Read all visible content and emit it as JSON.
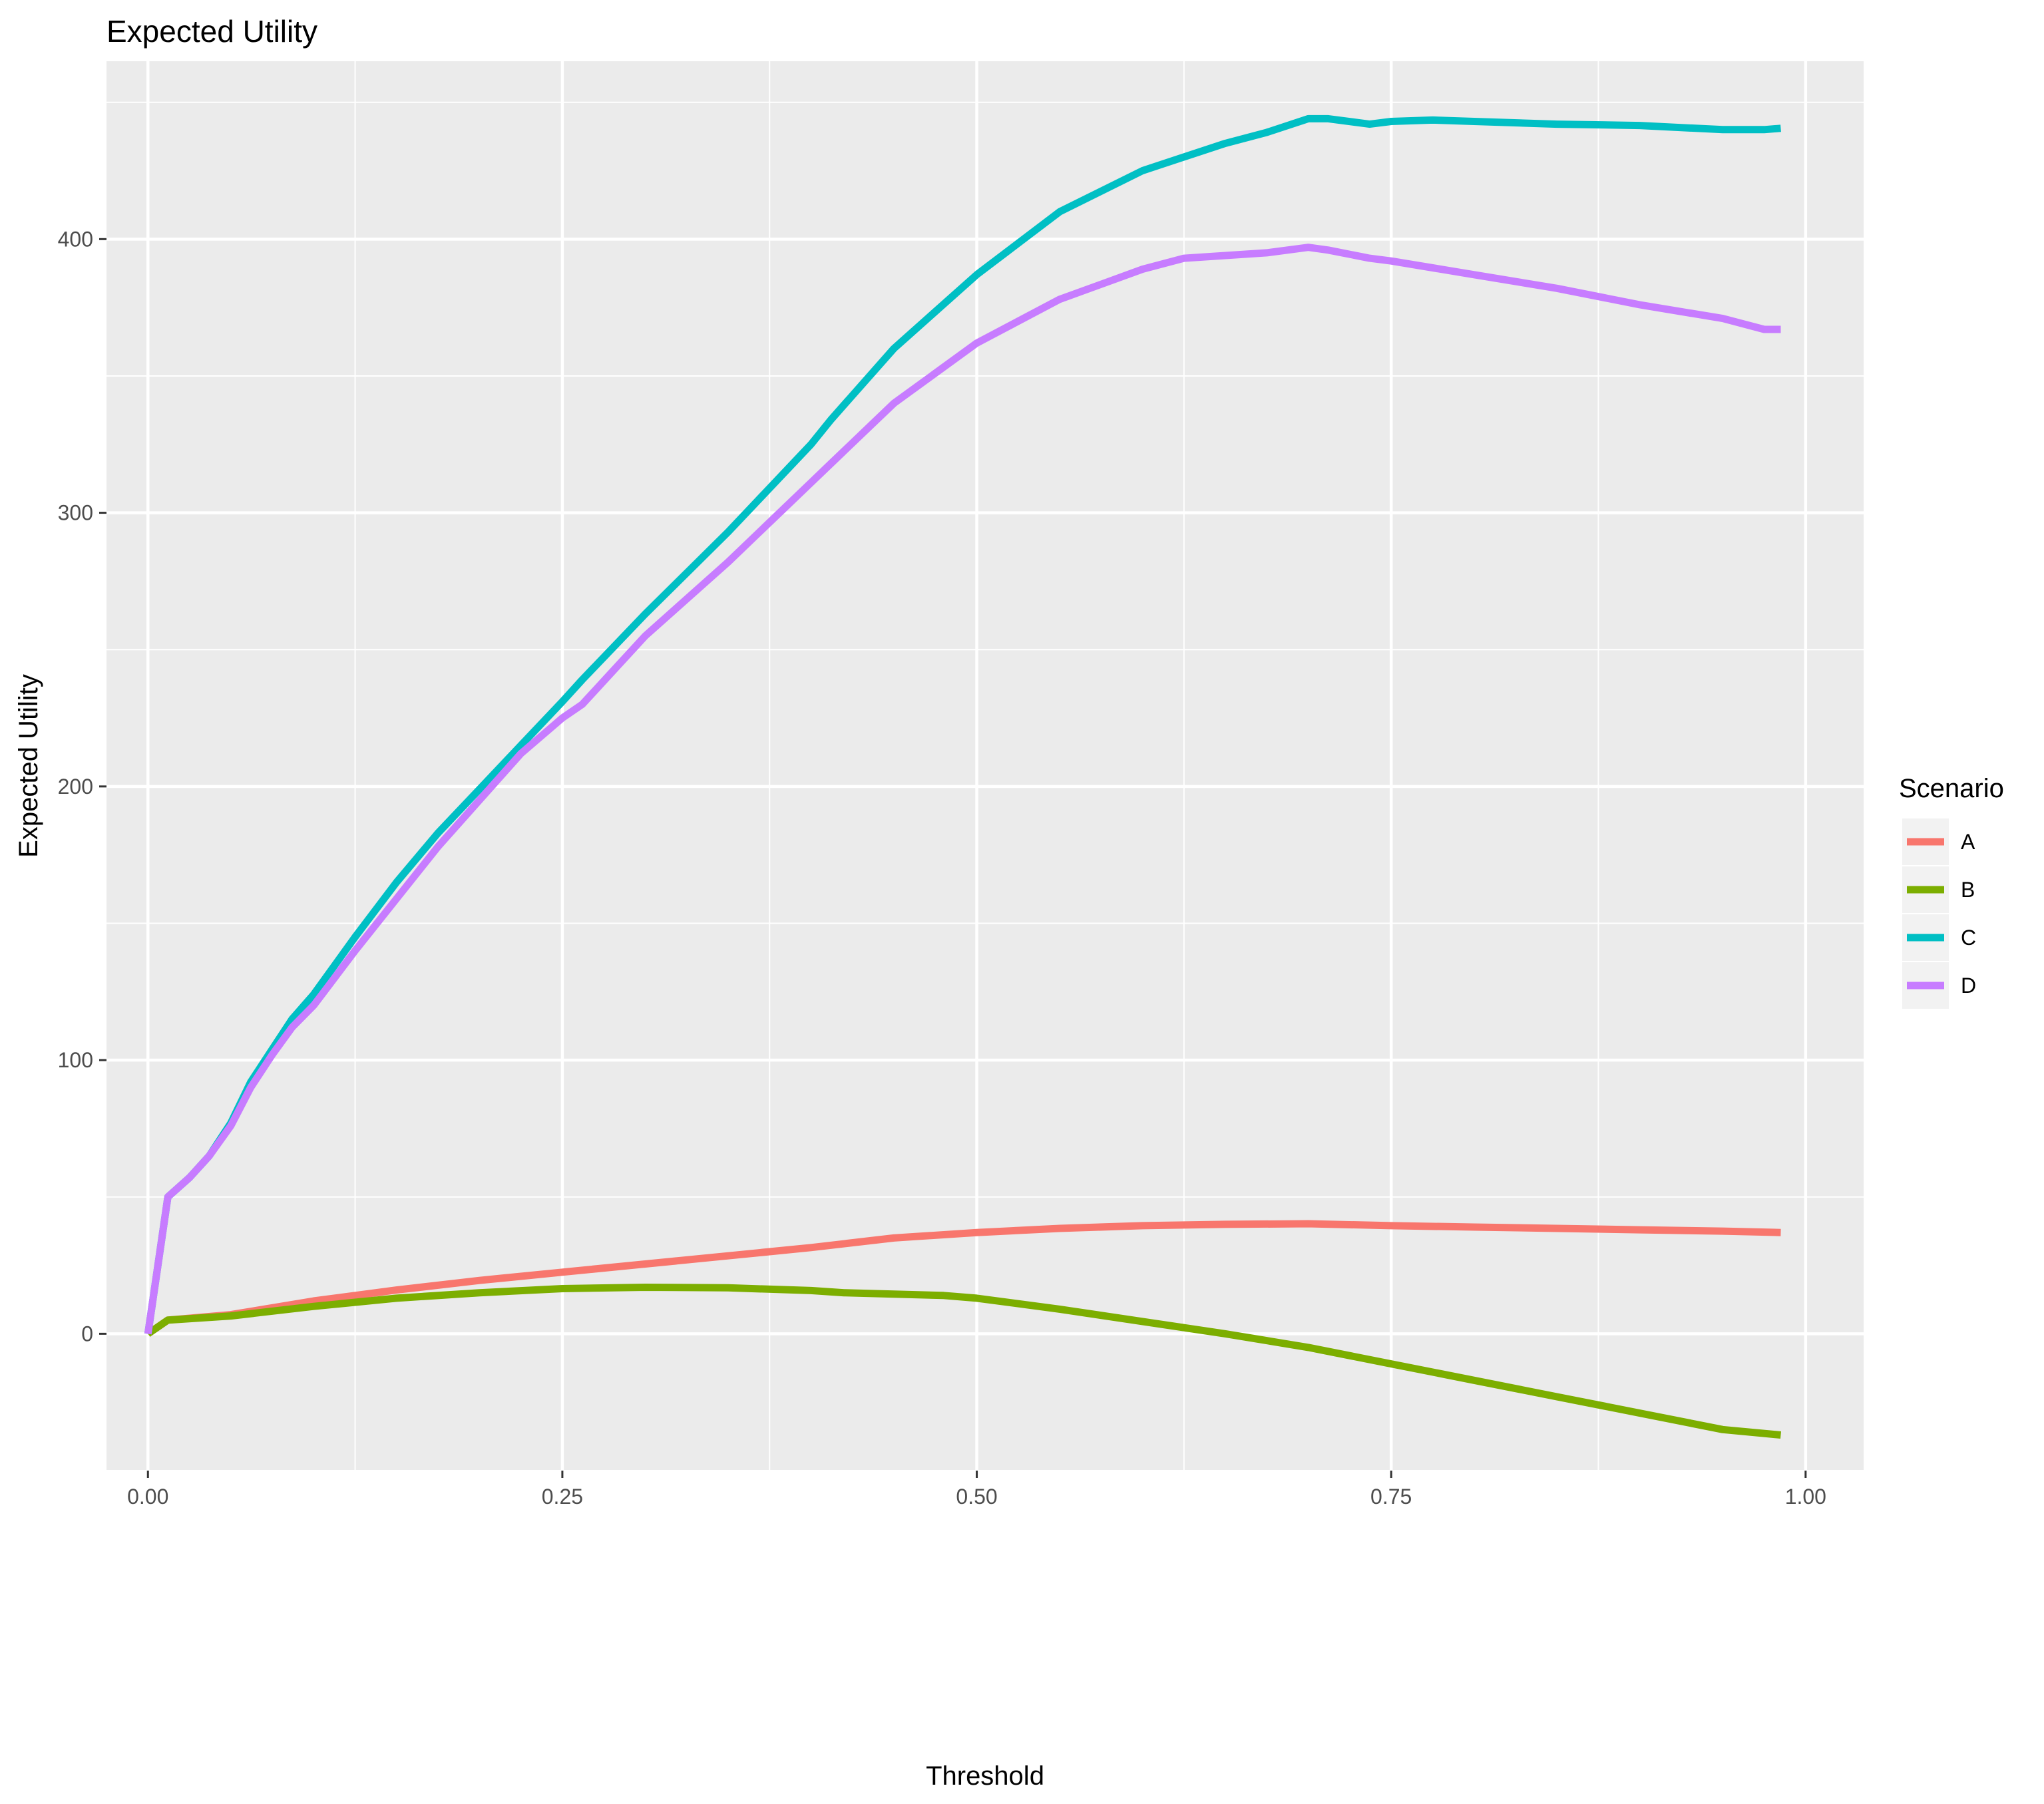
{
  "chart_data": {
    "type": "line",
    "title": "Expected Utility",
    "xlabel": "Threshold",
    "ylabel": "Expected Utility",
    "xlim": [
      -0.025,
      1.035
    ],
    "ylim": [
      -50,
      465
    ],
    "x_ticks": [
      0,
      0.25,
      0.5,
      0.75,
      1
    ],
    "x_tick_labels": [
      "0.00",
      "0.25",
      "0.50",
      "0.75",
      "1.00"
    ],
    "y_ticks": [
      0,
      100,
      200,
      300,
      400
    ],
    "y_tick_labels": [
      "0",
      "100",
      "200",
      "300",
      "400"
    ],
    "grid": true,
    "legend": {
      "title": "Scenario",
      "position": "right"
    },
    "series": [
      {
        "name": "A",
        "color": "#F8766D",
        "x": [
          0,
          0.012,
          0.05,
          0.1,
          0.15,
          0.2,
          0.25,
          0.3,
          0.35,
          0.4,
          0.45,
          0.5,
          0.55,
          0.6,
          0.65,
          0.7,
          0.75,
          0.8,
          0.85,
          0.9,
          0.95,
          0.985
        ],
        "y": [
          0,
          5,
          7,
          12,
          16,
          19.5,
          22.5,
          25.5,
          28.5,
          31.5,
          35,
          37,
          38.5,
          39.5,
          40,
          40.2,
          39.5,
          39,
          38.5,
          38,
          37.5,
          37
        ]
      },
      {
        "name": "B",
        "color": "#7CAE00",
        "x": [
          0,
          0.012,
          0.05,
          0.1,
          0.15,
          0.2,
          0.25,
          0.3,
          0.35,
          0.4,
          0.42,
          0.45,
          0.48,
          0.5,
          0.55,
          0.6,
          0.65,
          0.7,
          0.75,
          0.8,
          0.85,
          0.9,
          0.95,
          0.985
        ],
        "y": [
          0,
          5,
          6.5,
          10,
          13,
          15,
          16.5,
          17,
          16.8,
          15.8,
          15,
          14.5,
          14,
          13,
          9,
          4.5,
          0,
          -5,
          -11,
          -17,
          -23,
          -29,
          -35,
          -37
        ]
      },
      {
        "name": "C",
        "color": "#00BFC4",
        "x": [
          0,
          0.012,
          0.025,
          0.037,
          0.05,
          0.062,
          0.075,
          0.087,
          0.1,
          0.125,
          0.15,
          0.175,
          0.2,
          0.225,
          0.25,
          0.262,
          0.3,
          0.35,
          0.4,
          0.412,
          0.45,
          0.5,
          0.55,
          0.6,
          0.625,
          0.65,
          0.675,
          0.7,
          0.712,
          0.737,
          0.75,
          0.775,
          0.8,
          0.85,
          0.9,
          0.95,
          0.975,
          0.985
        ],
        "y": [
          0,
          50,
          57,
          65,
          77,
          92,
          104,
          115,
          124,
          145,
          165,
          183,
          199,
          215,
          231,
          239,
          263,
          293,
          325,
          334,
          360,
          387,
          410,
          425,
          430,
          435,
          439,
          444,
          444,
          442,
          443,
          443.5,
          443,
          442,
          441.5,
          440,
          440,
          440.5
        ]
      },
      {
        "name": "D",
        "color": "#C77CFF",
        "x": [
          0,
          0.012,
          0.025,
          0.037,
          0.05,
          0.062,
          0.075,
          0.087,
          0.1,
          0.125,
          0.15,
          0.175,
          0.2,
          0.225,
          0.25,
          0.262,
          0.3,
          0.35,
          0.4,
          0.412,
          0.45,
          0.5,
          0.55,
          0.6,
          0.625,
          0.65,
          0.675,
          0.7,
          0.712,
          0.737,
          0.75,
          0.8,
          0.85,
          0.9,
          0.95,
          0.975,
          0.985
        ],
        "y": [
          0,
          50,
          57,
          65,
          76,
          90,
          102,
          112,
          120,
          140,
          159,
          178,
          195,
          212,
          225,
          230,
          255,
          282,
          311,
          318,
          340,
          362,
          378,
          389,
          393,
          394,
          395,
          397,
          396,
          393,
          392,
          387,
          382,
          376,
          371,
          367,
          367
        ]
      }
    ]
  }
}
